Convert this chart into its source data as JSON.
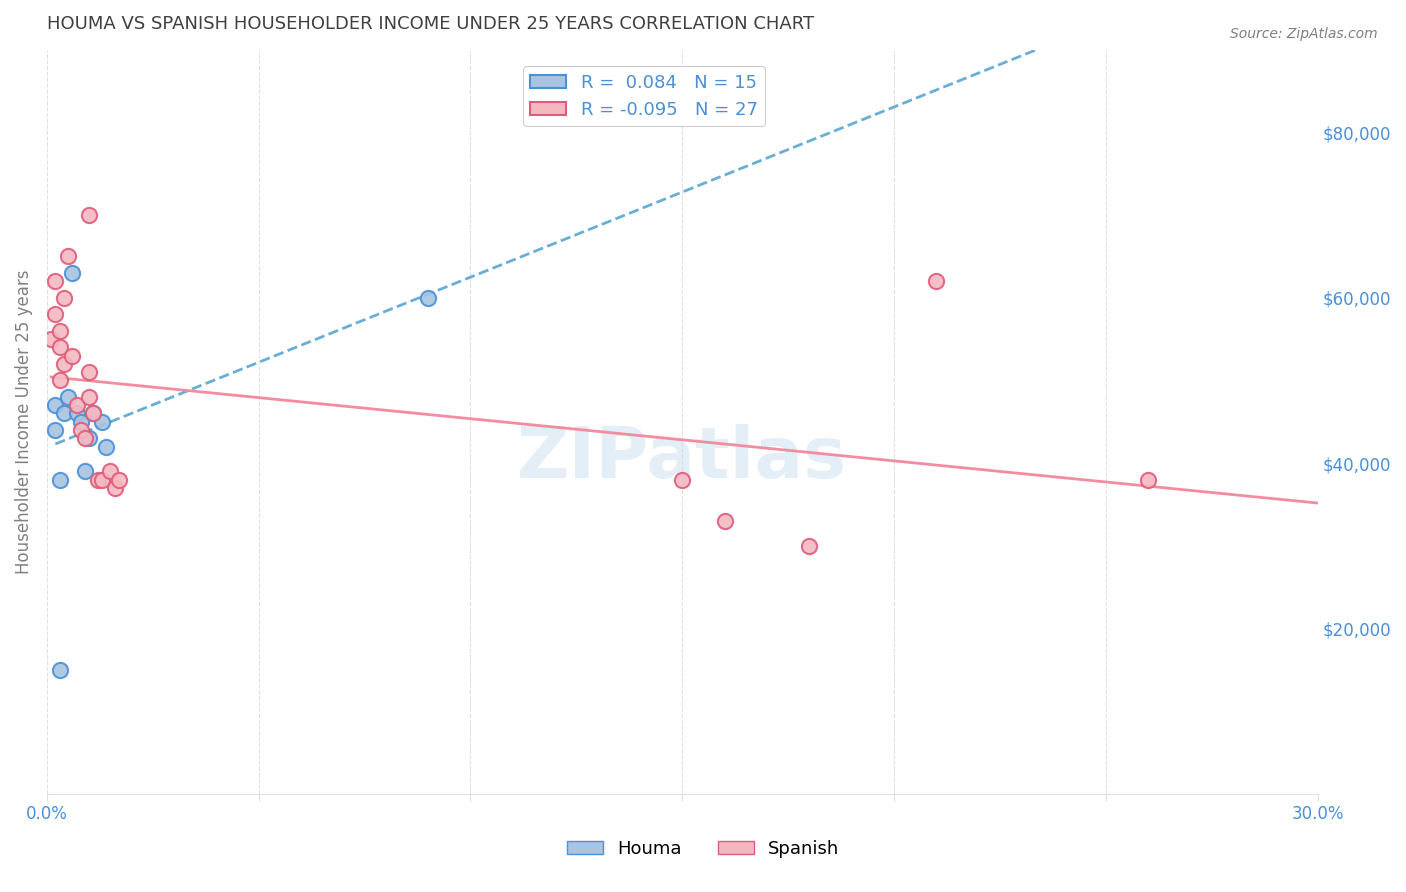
{
  "title": "HOUMA VS SPANISH HOUSEHOLDER INCOME UNDER 25 YEARS CORRELATION CHART",
  "source": "Source: ZipAtlas.com",
  "ylabel": "Householder Income Under 25 years",
  "watermark": "ZIPatlas",
  "xlim": [
    0.0,
    0.3
  ],
  "ylim": [
    0,
    90000
  ],
  "xticks": [
    0.0,
    0.05,
    0.1,
    0.15,
    0.2,
    0.25,
    0.3
  ],
  "xticklabels": [
    "0.0%",
    "",
    "",
    "",
    "",
    "",
    "30.0%"
  ],
  "yticks_right": [
    20000,
    40000,
    60000,
    80000
  ],
  "ytick_labels_right": [
    "$20,000",
    "$40,000",
    "$60,000",
    "$80,000"
  ],
  "houma_color": "#a8c4e0",
  "houma_edge_color": "#4a90d9",
  "spanish_color": "#f4b8c1",
  "spanish_edge_color": "#e05c7a",
  "houma_line_color": "#6aaed6",
  "spanish_line_color": "#f48ca0",
  "legend_r_houma": "R =  0.084",
  "legend_n_houma": "N = 15",
  "legend_r_spanish": "R = -0.095",
  "legend_n_spanish": "N = 27",
  "houma_x": [
    0.002,
    0.002,
    0.003,
    0.003,
    0.004,
    0.005,
    0.006,
    0.007,
    0.008,
    0.009,
    0.01,
    0.011,
    0.013,
    0.014,
    0.09
  ],
  "houma_y": [
    47000,
    44000,
    38000,
    15000,
    46000,
    48000,
    63000,
    46000,
    45000,
    39000,
    43000,
    46000,
    45000,
    42000,
    60000
  ],
  "spanish_x": [
    0.001,
    0.002,
    0.002,
    0.003,
    0.003,
    0.003,
    0.004,
    0.004,
    0.005,
    0.006,
    0.007,
    0.008,
    0.009,
    0.01,
    0.01,
    0.01,
    0.011,
    0.012,
    0.013,
    0.015,
    0.016,
    0.017,
    0.15,
    0.16,
    0.18,
    0.21,
    0.26
  ],
  "spanish_y": [
    55000,
    62000,
    58000,
    56000,
    54000,
    50000,
    60000,
    52000,
    65000,
    53000,
    47000,
    44000,
    43000,
    51000,
    48000,
    70000,
    46000,
    38000,
    38000,
    39000,
    37000,
    38000,
    38000,
    33000,
    30000,
    62000,
    38000
  ],
  "background_color": "#ffffff",
  "grid_color": "#e0e0e0",
  "title_color": "#404040",
  "axis_label_color": "#808080",
  "right_tick_color": "#4a90d9",
  "tick_color": "#808080"
}
